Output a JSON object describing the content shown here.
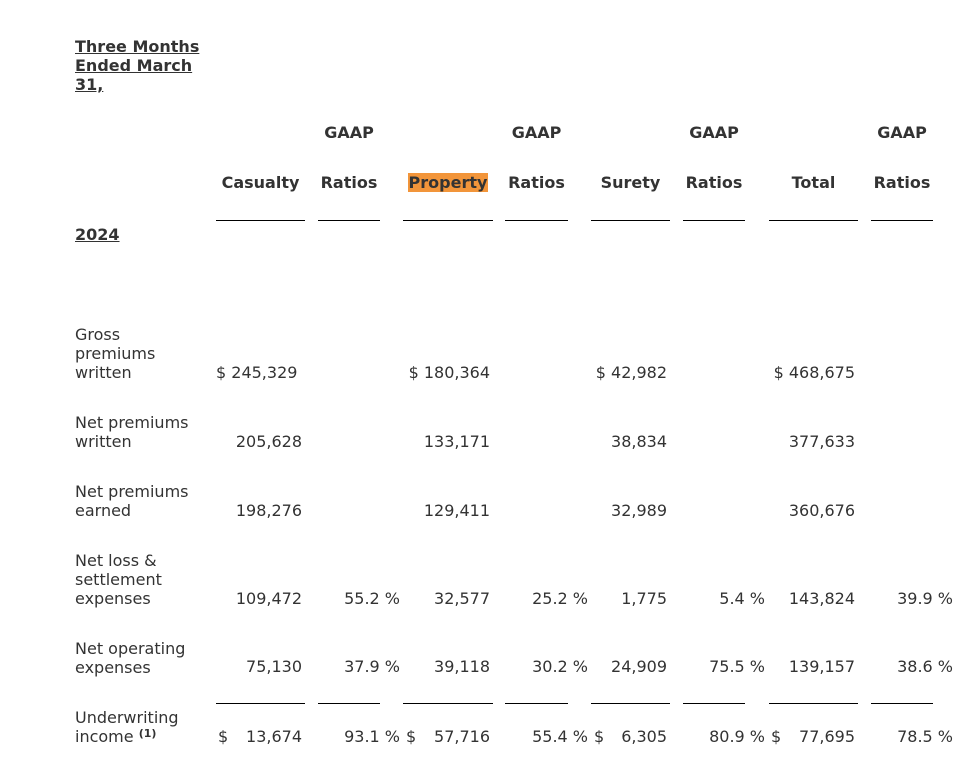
{
  "period_header": "Three Months Ended March 31,",
  "year": "2024",
  "columns": [
    {
      "top": "",
      "bottom": "Casualty"
    },
    {
      "top": "GAAP",
      "bottom": "Ratios"
    },
    {
      "top": "",
      "bottom": "Property"
    },
    {
      "top": "GAAP",
      "bottom": "Ratios"
    },
    {
      "top": "",
      "bottom": "Surety"
    },
    {
      "top": "GAAP",
      "bottom": "Ratios"
    },
    {
      "top": "",
      "bottom": "Total"
    },
    {
      "top": "GAAP",
      "bottom": "Ratios"
    }
  ],
  "rows": [
    {
      "label": "Gross premiums written",
      "casualty": "$ 245,329",
      "casualty_ratio": "",
      "property": "$ 180,364",
      "property_ratio": "",
      "surety": "$ 42,982",
      "surety_ratio": "",
      "total": "$ 468,675",
      "total_ratio": ""
    },
    {
      "label": "Net premiums written",
      "casualty": "205,628",
      "casualty_ratio": "",
      "property": "133,171",
      "property_ratio": "",
      "surety": "38,834",
      "surety_ratio": "",
      "total": "377,633",
      "total_ratio": ""
    },
    {
      "label": "Net premiums earned",
      "casualty": "198,276",
      "casualty_ratio": "",
      "property": "129,411",
      "property_ratio": "",
      "surety": "32,989",
      "surety_ratio": "",
      "total": "360,676",
      "total_ratio": ""
    },
    {
      "label": "Net loss & settlement expenses",
      "casualty": "109,472",
      "casualty_ratio": "55.2 %",
      "property": "32,577",
      "property_ratio": "25.2 %",
      "surety": "1,775",
      "surety_ratio": "5.4 %",
      "total": "143,824",
      "total_ratio": "39.9 %"
    },
    {
      "label": "Net operating expenses",
      "casualty": "75,130",
      "casualty_ratio": "37.9 %",
      "property": "39,118",
      "property_ratio": "30.2 %",
      "surety": "24,909",
      "surety_ratio": "75.5 %",
      "total": "139,157",
      "total_ratio": "38.6 %"
    }
  ],
  "underwriting": {
    "label": "Underwriting income",
    "footnote": "(1)",
    "casualty_dollar": "$",
    "casualty": "13,674",
    "casualty_ratio": "93.1 %",
    "property_dollar": "$",
    "property": "57,716",
    "property_ratio": "55.4 %",
    "surety_dollar": "$",
    "surety": "6,305",
    "surety_ratio": "80.9 %",
    "total_dollar": "$",
    "total": "77,695",
    "total_ratio": "78.5 %"
  }
}
